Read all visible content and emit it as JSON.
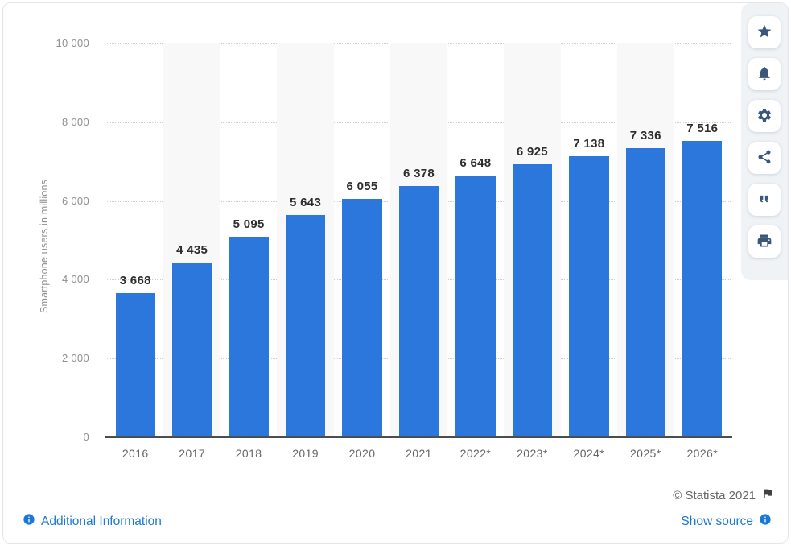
{
  "chart_data": {
    "type": "bar",
    "title": "",
    "categories": [
      "2016",
      "2017",
      "2018",
      "2019",
      "2020",
      "2021",
      "2022*",
      "2023*",
      "2024*",
      "2025*",
      "2026*"
    ],
    "values": [
      3668,
      4435,
      5095,
      5643,
      6055,
      6378,
      6648,
      6925,
      7138,
      7336,
      7516
    ],
    "value_labels": [
      "3 668",
      "4 435",
      "5 095",
      "5 643",
      "6 055",
      "6 378",
      "6 648",
      "6 925",
      "7 138",
      "7 336",
      "7 516"
    ],
    "xlabel": "",
    "ylabel": "Smartphone users in millions",
    "ylim": [
      0,
      10000
    ],
    "yticks": {
      "values": [
        10000,
        8000,
        6000,
        4000,
        2000,
        0
      ],
      "labels": [
        "10 000",
        "8 000",
        "6 000",
        "4 000",
        "2 000",
        "0"
      ]
    },
    "grid": "horizontal-dotted",
    "legend": "none",
    "bar_color": "#2c77dc",
    "stripe_color": "#f8f8f9"
  },
  "sidebar": {
    "icon_color": "#3a567a",
    "buttons": [
      {
        "label": "favorite",
        "icon": "star-icon"
      },
      {
        "label": "notifications",
        "icon": "bell-icon"
      },
      {
        "label": "settings",
        "icon": "gear-icon"
      },
      {
        "label": "share",
        "icon": "share-icon"
      },
      {
        "label": "cite",
        "icon": "quote-icon"
      },
      {
        "label": "print",
        "icon": "printer-icon"
      }
    ]
  },
  "footer": {
    "copyright": "© Statista 2021",
    "additional_info_label": "Additional Information",
    "show_source_label": "Show source",
    "link_color": "#1a78d6"
  }
}
